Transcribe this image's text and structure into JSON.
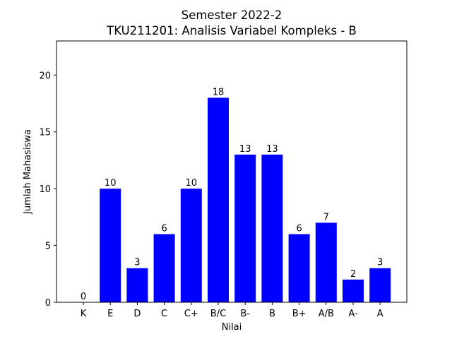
{
  "chart_data": {
    "type": "bar",
    "title": "Semester 2022-2",
    "subtitle": "TKU211201: Analisis Variabel Kompleks - B",
    "xlabel": "Nilai",
    "ylabel": "Jumlah Mahasiswa",
    "categories": [
      "K",
      "E",
      "D",
      "C",
      "C+",
      "B/C",
      "B-",
      "B",
      "B+",
      "A/B",
      "A-",
      "A"
    ],
    "values": [
      0,
      10,
      3,
      6,
      10,
      18,
      13,
      13,
      6,
      7,
      2,
      3
    ],
    "ylim": [
      0,
      23
    ],
    "yticks": [
      0,
      5,
      10,
      15,
      20
    ],
    "bar_color": "#0000ff",
    "grid": false,
    "legend": "none",
    "data_labels": true
  }
}
